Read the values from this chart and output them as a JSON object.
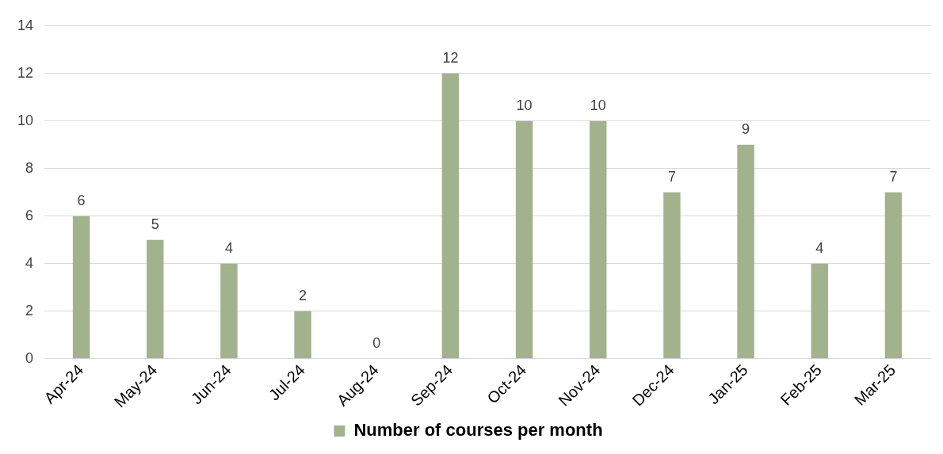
{
  "chart_data": {
    "type": "bar",
    "categories": [
      "Apr-24",
      "May-24",
      "Jun-24",
      "Jul-24",
      "Aug-24",
      "Sep-24",
      "Oct-24",
      "Nov-24",
      "Dec-24",
      "Jan-25",
      "Feb-25",
      "Mar-25"
    ],
    "series": [
      {
        "name": "Number of courses per month",
        "color": "#a2b28c",
        "values": [
          6,
          5,
          4,
          2,
          0,
          12,
          10,
          10,
          7,
          9,
          4,
          7
        ]
      }
    ],
    "ylim": [
      0,
      14
    ],
    "yticks": [
      0,
      2,
      4,
      6,
      8,
      10,
      12,
      14
    ],
    "grid": "y",
    "legend": "bottom",
    "data_labels": true
  }
}
